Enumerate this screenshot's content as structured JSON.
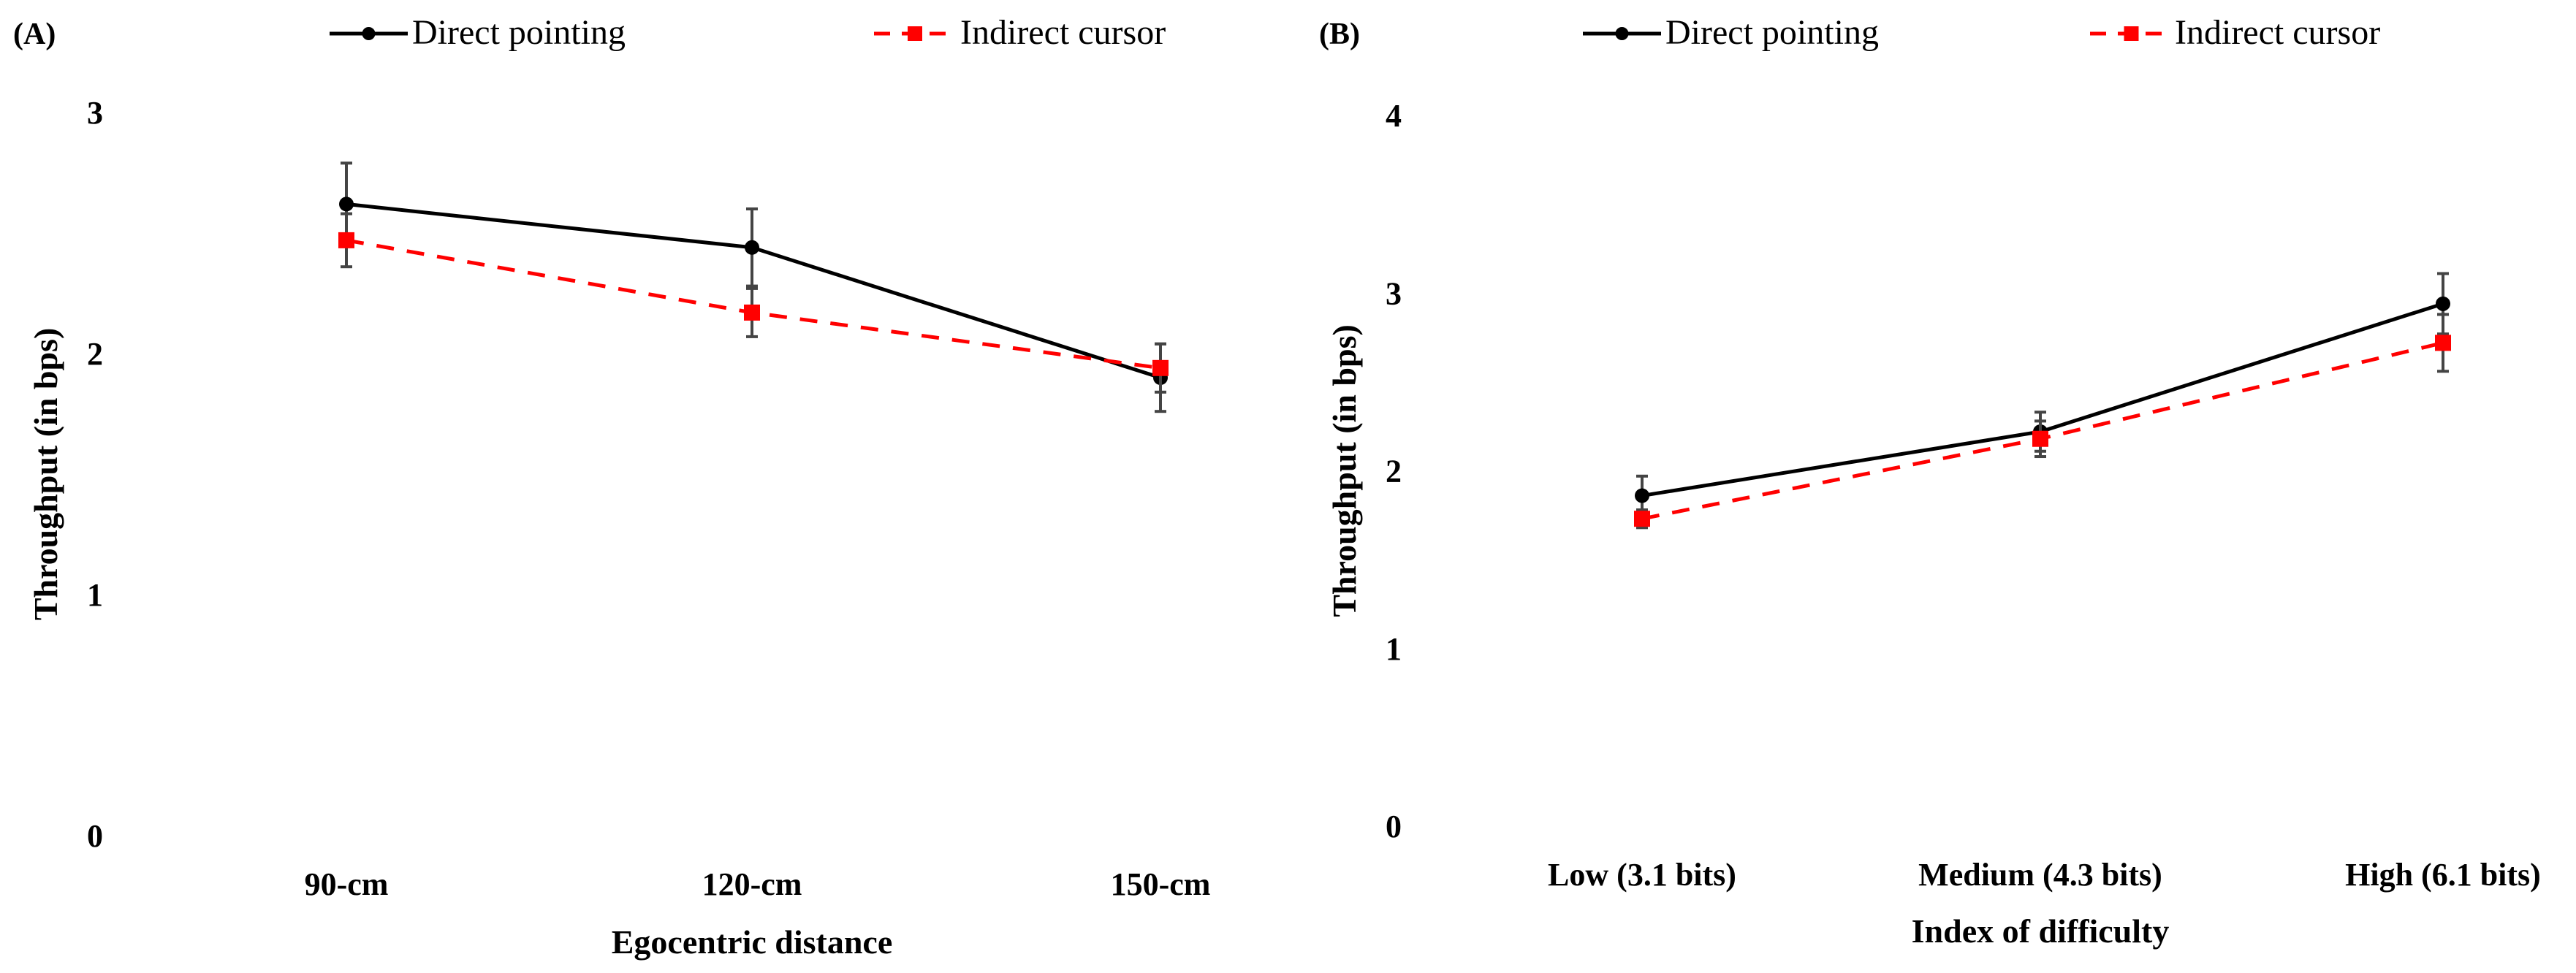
{
  "chart_data": [
    {
      "type": "line",
      "panel_label": "(A)",
      "title": "",
      "xlabel": "Egocentric distance",
      "ylabel": "Throughput (in bps)",
      "categories": [
        "90-cm",
        "120-cm",
        "150-cm"
      ],
      "ylim": [
        0,
        3
      ],
      "yticks": [
        "0",
        "1",
        "2",
        "3"
      ],
      "grid": false,
      "legend_position": "top",
      "series": [
        {
          "name": "Direct pointing",
          "color": "#000000",
          "style": "solid",
          "marker": "circle",
          "values": [
            2.62,
            2.44,
            1.9
          ],
          "errors": [
            0.17,
            0.16,
            0.14
          ]
        },
        {
          "name": "Indirect cursor",
          "color": "#ff0000",
          "style": "dashed",
          "marker": "square",
          "values": [
            2.47,
            2.17,
            1.94
          ],
          "errors": [
            0.11,
            0.1,
            0.1
          ]
        }
      ]
    },
    {
      "type": "line",
      "panel_label": "(B)",
      "title": "",
      "xlabel": "Index of difficulty",
      "ylabel": "Throughput (in bps)",
      "categories": [
        "Low (3.1 bits)",
        "Medium (4.3 bits)",
        "High (6.1 bits)"
      ],
      "ylim": [
        0,
        4
      ],
      "yticks": [
        "0",
        "1",
        "2",
        "3",
        "4"
      ],
      "grid": false,
      "legend_position": "top",
      "series": [
        {
          "name": "Direct pointing",
          "color": "#000000",
          "style": "solid",
          "marker": "circle",
          "values": [
            1.86,
            2.22,
            2.94
          ],
          "errors": [
            0.11,
            0.11,
            0.17
          ]
        },
        {
          "name": "Indirect cursor",
          "color": "#ff0000",
          "style": "dashed",
          "marker": "square",
          "values": [
            1.73,
            2.18,
            2.72
          ],
          "errors": [
            0.05,
            0.1,
            0.16
          ]
        }
      ]
    }
  ]
}
